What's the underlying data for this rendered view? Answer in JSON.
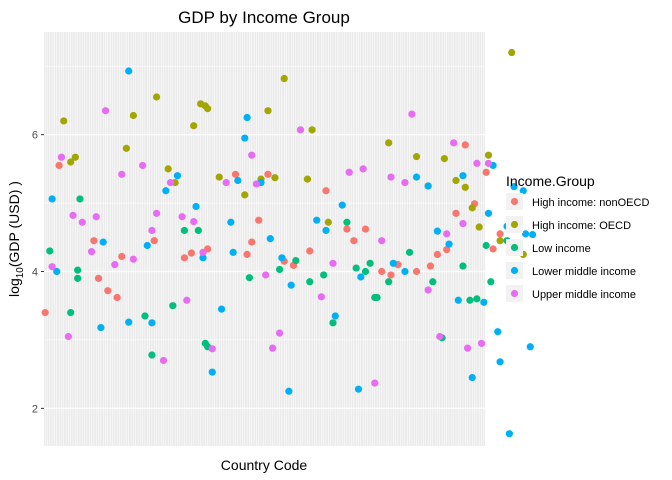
{
  "chart_data": {
    "type": "scatter",
    "title": "GDP by Income Group",
    "xlabel": "Country Code",
    "ylabel_text": "log",
    "ylabel_subscript": "10",
    "ylabel_suffix": "(GDP (USD) )",
    "ylim": [
      1.45,
      7.5
    ],
    "y_ticks": [
      2,
      4,
      6
    ],
    "x_count": 190,
    "grid": true,
    "legend_position": "right",
    "legend_title": "Income.Group",
    "series": [
      {
        "name": "High income: nonOECD",
        "color": "#F8766D",
        "points": [
          [
            0,
            3.4
          ],
          [
            6,
            5.55
          ],
          [
            21,
            4.45
          ],
          [
            23,
            3.9
          ],
          [
            27,
            3.72
          ],
          [
            31,
            3.62
          ],
          [
            33,
            4.22
          ],
          [
            47,
            4.45
          ],
          [
            60,
            4.2
          ],
          [
            63,
            4.27
          ],
          [
            70,
            4.33
          ],
          [
            82,
            5.42
          ],
          [
            87,
            4.25
          ],
          [
            89,
            4.43
          ],
          [
            92,
            4.75
          ],
          [
            96,
            5.42
          ],
          [
            103,
            4.15
          ],
          [
            107,
            4.09
          ],
          [
            114,
            4.3
          ],
          [
            121,
            5.18
          ],
          [
            130,
            4.62
          ],
          [
            133,
            4.45
          ],
          [
            138,
            4.62
          ],
          [
            145,
            4.0
          ],
          [
            149,
            3.95
          ],
          [
            152,
            4.1
          ],
          [
            160,
            4.0
          ],
          [
            166,
            4.08
          ],
          [
            169,
            4.25
          ],
          [
            173,
            4.32
          ],
          [
            177,
            4.85
          ],
          [
            181,
            5.85
          ],
          [
            185,
            4.99
          ],
          [
            190,
            5.45
          ],
          [
            193,
            4.33
          ],
          [
            196,
            4.55
          ]
        ]
      },
      {
        "name": "High income: OECD",
        "color": "#A3A500",
        "points": [
          [
            8,
            6.2
          ],
          [
            11,
            5.6
          ],
          [
            13,
            5.67
          ],
          [
            35,
            5.8
          ],
          [
            38,
            6.28
          ],
          [
            48,
            6.55
          ],
          [
            53,
            5.5
          ],
          [
            56,
            5.3
          ],
          [
            64,
            6.13
          ],
          [
            67,
            6.45
          ],
          [
            69,
            6.42
          ],
          [
            70,
            6.38
          ],
          [
            75,
            5.38
          ],
          [
            86,
            5.12
          ],
          [
            93,
            5.35
          ],
          [
            96,
            6.35
          ],
          [
            99,
            5.37
          ],
          [
            103,
            6.82
          ],
          [
            113,
            5.35
          ],
          [
            115,
            6.07
          ],
          [
            122,
            4.72
          ],
          [
            148,
            5.88
          ],
          [
            160,
            5.68
          ],
          [
            165,
            5.25
          ],
          [
            172,
            5.65
          ],
          [
            177,
            5.33
          ],
          [
            181,
            5.23
          ],
          [
            184,
            4.93
          ],
          [
            187,
            4.65
          ],
          [
            191,
            5.7
          ],
          [
            196,
            4.45
          ],
          [
            201,
            7.2
          ],
          [
            206,
            4.25
          ]
        ]
      },
      {
        "name": "Low income",
        "color": "#00BF7D",
        "points": [
          [
            2,
            4.3
          ],
          [
            11,
            3.4
          ],
          [
            14,
            3.9
          ],
          [
            14,
            4.02
          ],
          [
            15,
            5.06
          ],
          [
            43,
            3.35
          ],
          [
            46,
            2.78
          ],
          [
            55,
            3.5
          ],
          [
            60,
            4.6
          ],
          [
            66,
            4.6
          ],
          [
            69,
            2.95
          ],
          [
            70,
            2.9
          ],
          [
            88,
            3.91
          ],
          [
            101,
            4.03
          ],
          [
            108,
            4.16
          ],
          [
            114,
            3.85
          ],
          [
            120,
            3.95
          ],
          [
            124,
            3.25
          ],
          [
            130,
            4.72
          ],
          [
            134,
            4.05
          ],
          [
            138,
            4.0
          ],
          [
            140,
            4.12
          ],
          [
            142,
            3.62
          ],
          [
            143,
            3.62
          ],
          [
            148,
            3.85
          ],
          [
            157,
            4.28
          ],
          [
            167,
            3.85
          ],
          [
            171,
            3.03
          ],
          [
            180,
            4.08
          ],
          [
            183,
            3.58
          ],
          [
            186,
            3.6
          ],
          [
            190,
            4.38
          ],
          [
            192,
            3.85
          ],
          [
            199,
            4.45
          ],
          [
            202,
            4.3
          ],
          [
            204,
            3.98
          ]
        ]
      },
      {
        "name": "Lower middle income",
        "color": "#00B0F6",
        "points": [
          [
            3,
            5.06
          ],
          [
            5,
            4.0
          ],
          [
            24,
            3.18
          ],
          [
            25,
            4.43
          ],
          [
            36,
            3.26
          ],
          [
            36,
            6.93
          ],
          [
            44,
            4.38
          ],
          [
            46,
            3.25
          ],
          [
            52,
            5.18
          ],
          [
            57,
            5.4
          ],
          [
            65,
            4.95
          ],
          [
            68,
            4.2
          ],
          [
            72,
            2.53
          ],
          [
            76,
            3.45
          ],
          [
            80,
            4.72
          ],
          [
            81,
            4.28
          ],
          [
            83,
            5.33
          ],
          [
            86,
            5.95
          ],
          [
            87,
            6.25
          ],
          [
            93,
            5.3
          ],
          [
            97,
            4.48
          ],
          [
            102,
            4.2
          ],
          [
            105,
            2.25
          ],
          [
            106,
            3.8
          ],
          [
            117,
            4.75
          ],
          [
            121,
            4.6
          ],
          [
            125,
            3.35
          ],
          [
            128,
            4.97
          ],
          [
            135,
            2.28
          ],
          [
            136,
            3.92
          ],
          [
            150,
            4.12
          ],
          [
            155,
            4.0
          ],
          [
            160,
            5.38
          ],
          [
            165,
            5.25
          ],
          [
            169,
            4.59
          ],
          [
            174,
            4.4
          ],
          [
            178,
            3.58
          ],
          [
            180,
            5.4
          ],
          [
            184,
            2.45
          ],
          [
            189,
            3.55
          ],
          [
            191,
            4.85
          ],
          [
            193,
            5.55
          ],
          [
            195,
            3.12
          ],
          [
            196,
            2.68
          ],
          [
            199,
            4.66
          ],
          [
            200,
            1.63
          ],
          [
            202,
            5.24
          ],
          [
            204,
            4.71
          ],
          [
            206,
            5.18
          ],
          [
            207,
            4.55
          ],
          [
            209,
            2.9
          ],
          [
            210,
            4.54
          ]
        ]
      },
      {
        "name": "Upper middle income",
        "color": "#E76BF3",
        "points": [
          [
            3,
            4.07
          ],
          [
            7,
            5.67
          ],
          [
            10,
            3.05
          ],
          [
            12,
            4.82
          ],
          [
            16,
            4.72
          ],
          [
            20,
            4.29
          ],
          [
            22,
            4.8
          ],
          [
            26,
            6.35
          ],
          [
            30,
            4.1
          ],
          [
            33,
            5.42
          ],
          [
            38,
            4.18
          ],
          [
            42,
            5.55
          ],
          [
            46,
            4.6
          ],
          [
            48,
            4.85
          ],
          [
            51,
            2.7
          ],
          [
            54,
            5.3
          ],
          [
            59,
            4.8
          ],
          [
            61,
            3.58
          ],
          [
            64,
            4.73
          ],
          [
            68,
            4.28
          ],
          [
            72,
            2.87
          ],
          [
            78,
            5.3
          ],
          [
            89,
            5.7
          ],
          [
            91,
            5.28
          ],
          [
            95,
            3.95
          ],
          [
            98,
            2.88
          ],
          [
            101,
            3.1
          ],
          [
            110,
            6.07
          ],
          [
            119,
            3.63
          ],
          [
            124,
            4.12
          ],
          [
            131,
            5.45
          ],
          [
            137,
            5.5
          ],
          [
            142,
            2.37
          ],
          [
            145,
            4.45
          ],
          [
            149,
            5.38
          ],
          [
            155,
            5.3
          ],
          [
            158,
            6.3
          ],
          [
            165,
            3.73
          ],
          [
            170,
            3.05
          ],
          [
            173,
            4.55
          ],
          [
            176,
            5.88
          ],
          [
            180,
            4.7
          ],
          [
            182,
            2.88
          ],
          [
            186,
            5.58
          ],
          [
            188,
            2.95
          ],
          [
            191,
            5.58
          ]
        ]
      }
    ]
  }
}
